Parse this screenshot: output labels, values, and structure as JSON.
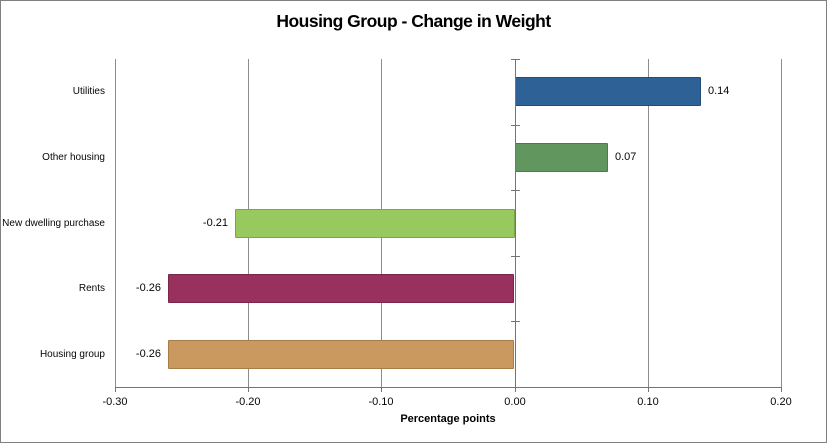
{
  "chart": {
    "title": "Housing Group - Change in Weight",
    "x_axis_title": "Percentage points"
  },
  "chart_data": {
    "type": "bar",
    "orientation": "horizontal",
    "title": "Housing Group - Change in Weight",
    "xlabel": "Percentage points",
    "ylabel": "",
    "categories": [
      "Utilities",
      "Other housing",
      "New dwelling purchase",
      "Rents",
      "Housing group"
    ],
    "values": [
      0.14,
      0.07,
      -0.21,
      -0.26,
      -0.26
    ],
    "value_labels": [
      "0.14",
      "0.07",
      "-0.21",
      "-0.26",
      "-0.26"
    ],
    "bar_colors": [
      "#2e6196",
      "#61965e",
      "#97c95f",
      "#99315f",
      "#ca9960"
    ],
    "bar_border_colors": [
      "#234b76",
      "#4c7a49",
      "#79a64a",
      "#7b254c",
      "#a87c46"
    ],
    "xlim": [
      -0.3,
      0.2
    ],
    "x_ticks": [
      -0.3,
      -0.2,
      -0.1,
      0.0,
      0.1,
      0.2
    ],
    "x_tick_labels": [
      "-0.30",
      "-0.20",
      "-0.10",
      "0.00",
      "0.10",
      "0.20"
    ],
    "grid": true,
    "legend": false,
    "gridline_color": "#8c8c8c",
    "axis_color": "#747474",
    "background_color": "#ffffff",
    "chart_border_color": "#808080"
  }
}
